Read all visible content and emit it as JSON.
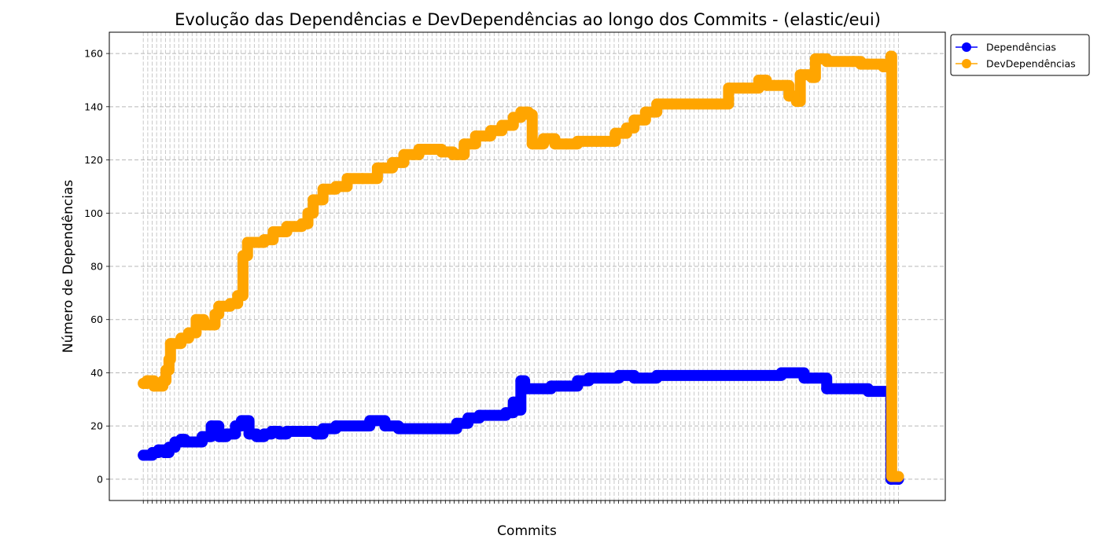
{
  "chart_data": {
    "type": "line",
    "title": "Evolução das Dependências e DevDependências ao longo dos Commits - (elastic/eui)",
    "xlabel": "Commits",
    "ylabel": "Número de Dependências",
    "ylim": [
      -8,
      168
    ],
    "yticks": [
      0,
      20,
      40,
      60,
      80,
      100,
      120,
      140,
      160
    ],
    "x_tick_labels_note": "",
    "grid": true,
    "legend_position": "outside-top-right",
    "commit_index_range": [
      0,
      1000
    ],
    "series": [
      {
        "name": "Dependências",
        "color": "#0000ff",
        "points": [
          [
            0,
            9
          ],
          [
            12,
            10
          ],
          [
            20,
            11
          ],
          [
            28,
            10
          ],
          [
            34,
            12
          ],
          [
            42,
            14
          ],
          [
            50,
            15
          ],
          [
            55,
            14
          ],
          [
            78,
            16
          ],
          [
            90,
            20
          ],
          [
            100,
            16
          ],
          [
            110,
            17
          ],
          [
            122,
            20
          ],
          [
            130,
            22
          ],
          [
            140,
            17
          ],
          [
            150,
            16
          ],
          [
            160,
            17
          ],
          [
            170,
            18
          ],
          [
            180,
            17
          ],
          [
            190,
            18
          ],
          [
            220,
            18
          ],
          [
            228,
            17
          ],
          [
            238,
            19
          ],
          [
            255,
            20
          ],
          [
            300,
            22
          ],
          [
            320,
            20
          ],
          [
            338,
            19
          ],
          [
            400,
            19
          ],
          [
            415,
            21
          ],
          [
            430,
            23
          ],
          [
            445,
            24
          ],
          [
            480,
            25
          ],
          [
            490,
            29
          ],
          [
            497,
            26
          ],
          [
            500,
            37
          ],
          [
            505,
            34
          ],
          [
            540,
            35
          ],
          [
            550,
            35
          ],
          [
            575,
            37
          ],
          [
            590,
            38
          ],
          [
            630,
            39
          ],
          [
            650,
            38
          ],
          [
            680,
            39
          ],
          [
            845,
            40
          ],
          [
            875,
            38
          ],
          [
            880,
            38
          ],
          [
            905,
            34
          ],
          [
            960,
            33
          ],
          [
            985,
            33
          ],
          [
            990,
            0
          ],
          [
            1000,
            0
          ]
        ]
      },
      {
        "name": "DevDependências",
        "color": "#ffa500",
        "points": [
          [
            0,
            36
          ],
          [
            5,
            37
          ],
          [
            14,
            35
          ],
          [
            26,
            37
          ],
          [
            30,
            41
          ],
          [
            34,
            45
          ],
          [
            36,
            51
          ],
          [
            50,
            53
          ],
          [
            60,
            55
          ],
          [
            70,
            60
          ],
          [
            80,
            58
          ],
          [
            95,
            62
          ],
          [
            100,
            65
          ],
          [
            115,
            66
          ],
          [
            125,
            69
          ],
          [
            132,
            84
          ],
          [
            138,
            89
          ],
          [
            160,
            90
          ],
          [
            172,
            93
          ],
          [
            190,
            95
          ],
          [
            210,
            96
          ],
          [
            218,
            100
          ],
          [
            225,
            105
          ],
          [
            238,
            109
          ],
          [
            255,
            110
          ],
          [
            270,
            113
          ],
          [
            290,
            113
          ],
          [
            310,
            117
          ],
          [
            330,
            119
          ],
          [
            345,
            122
          ],
          [
            365,
            124
          ],
          [
            395,
            123
          ],
          [
            410,
            122
          ],
          [
            425,
            126
          ],
          [
            440,
            129
          ],
          [
            460,
            131
          ],
          [
            475,
            133
          ],
          [
            490,
            136
          ],
          [
            500,
            138
          ],
          [
            510,
            137
          ],
          [
            515,
            126
          ],
          [
            530,
            128
          ],
          [
            545,
            126
          ],
          [
            560,
            126
          ],
          [
            575,
            127
          ],
          [
            600,
            127
          ],
          [
            625,
            130
          ],
          [
            640,
            132
          ],
          [
            650,
            135
          ],
          [
            665,
            138
          ],
          [
            680,
            141
          ],
          [
            700,
            141
          ],
          [
            760,
            141
          ],
          [
            775,
            147
          ],
          [
            795,
            147
          ],
          [
            815,
            150
          ],
          [
            825,
            148
          ],
          [
            850,
            148
          ],
          [
            855,
            144
          ],
          [
            865,
            142
          ],
          [
            870,
            152
          ],
          [
            885,
            151
          ],
          [
            890,
            158
          ],
          [
            905,
            157
          ],
          [
            940,
            157
          ],
          [
            950,
            156
          ],
          [
            960,
            156
          ],
          [
            980,
            155
          ],
          [
            990,
            159
          ],
          [
            991,
            1
          ],
          [
            1000,
            1
          ]
        ]
      }
    ]
  }
}
